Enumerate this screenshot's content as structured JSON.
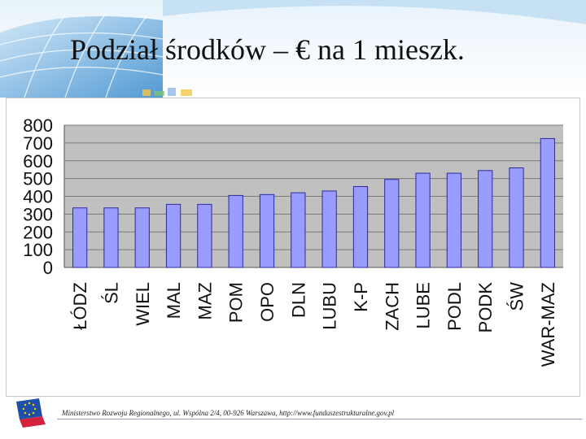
{
  "slide": {
    "title": "Podział środków – € na 1 mieszk.",
    "footer": "Ministerstwo Rozwoju Regionalnego, ul. Wspólna 2/4, 00-926 Warszawa, http://www.funduszestrukturalne.gov.pl"
  },
  "colors": {
    "bar_fill": "#9a9cff",
    "bar_stroke": "#2a2aa0",
    "plot_background": "#c0c0c0",
    "gridline": "#7a7a7a"
  },
  "chart_data": {
    "type": "bar",
    "title": "",
    "xlabel": "",
    "ylabel": "",
    "categories": [
      "ŁÓDZ",
      "ŚL",
      "WIEL",
      "MAL",
      "MAZ",
      "POM",
      "OPO",
      "DLN",
      "LUBU",
      "K-P",
      "ZACH",
      "LUBE",
      "PODL",
      "PODK",
      "ŚW",
      "WAR-MAZ"
    ],
    "values": [
      335,
      335,
      335,
      355,
      355,
      405,
      410,
      420,
      430,
      455,
      495,
      530,
      530,
      545,
      560,
      725
    ],
    "ylim": [
      0,
      800
    ],
    "yticks": [
      "0",
      "100",
      "200",
      "300",
      "400",
      "500",
      "600",
      "700",
      "800"
    ],
    "grid": true,
    "legend": "none"
  }
}
